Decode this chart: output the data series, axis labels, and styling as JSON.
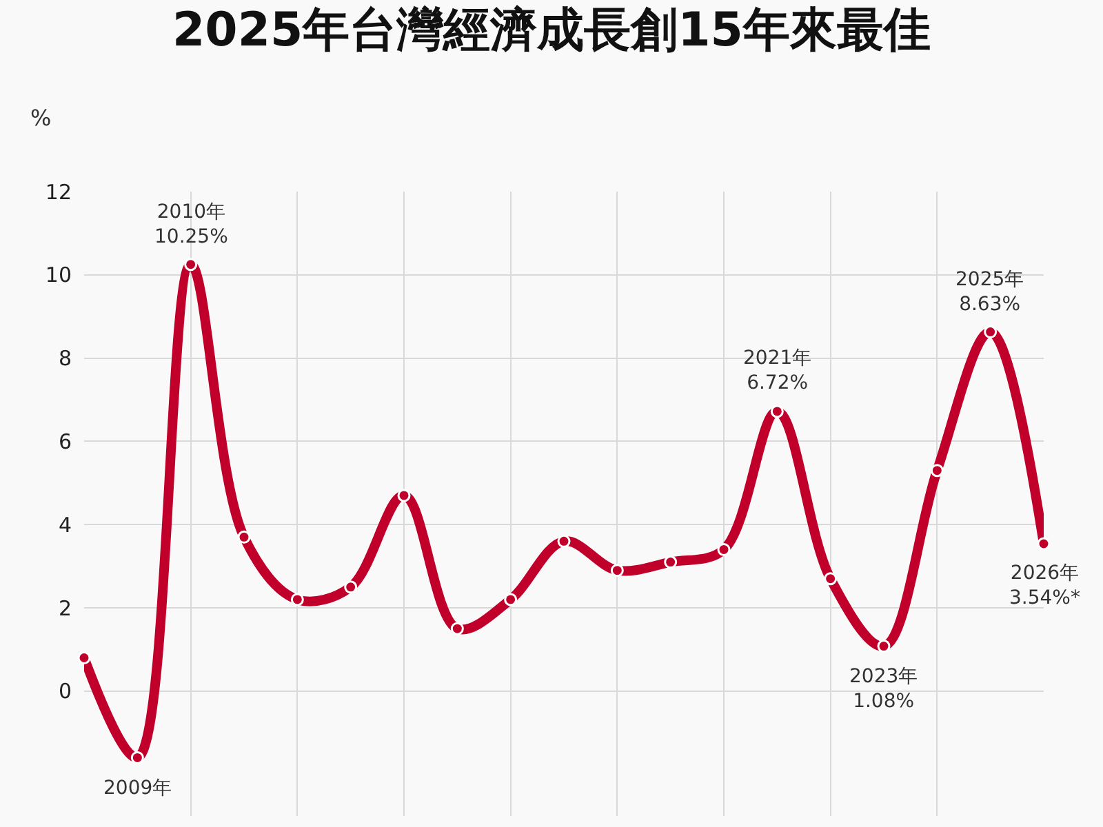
{
  "chart_data": {
    "type": "line",
    "title": "2025年台灣經濟成長創15年來最佳",
    "ylabel": "%",
    "categories": [
      null,
      null,
      null,
      null,
      null,
      null,
      null,
      null,
      null,
      null,
      null,
      null,
      null,
      null,
      null,
      null,
      null,
      null,
      null
    ],
    "series": [
      {
        "color": "#c0002a",
        "values": [
          0.8,
          -1.6,
          10.25,
          3.7,
          2.2,
          2.5,
          4.7,
          1.5,
          2.2,
          3.6,
          2.9,
          3.1,
          3.4,
          6.72,
          2.7,
          1.08,
          5.3,
          8.63,
          3.54
        ]
      }
    ],
    "ylim": [
      -3,
      12
    ],
    "yticks": [
      0,
      2,
      4,
      6,
      8,
      10,
      12
    ],
    "grid": true,
    "marker": "circle",
    "line_style": "solid",
    "tick_labels": "y",
    "annotations": [
      {
        "text": "2009年",
        "y": -1.6
      },
      {
        "text": "2010年\n10.25%",
        "y": 10.25
      },
      {
        "text": "2021年\n6.72%",
        "y": 6.72
      },
      {
        "text": "2023年\n1.08%",
        "y": 1.08
      },
      {
        "text": "2025年\n8.63%",
        "y": 8.63
      },
      {
        "text": "2026年\n3.54%*",
        "y": 3.54
      }
    ]
  }
}
